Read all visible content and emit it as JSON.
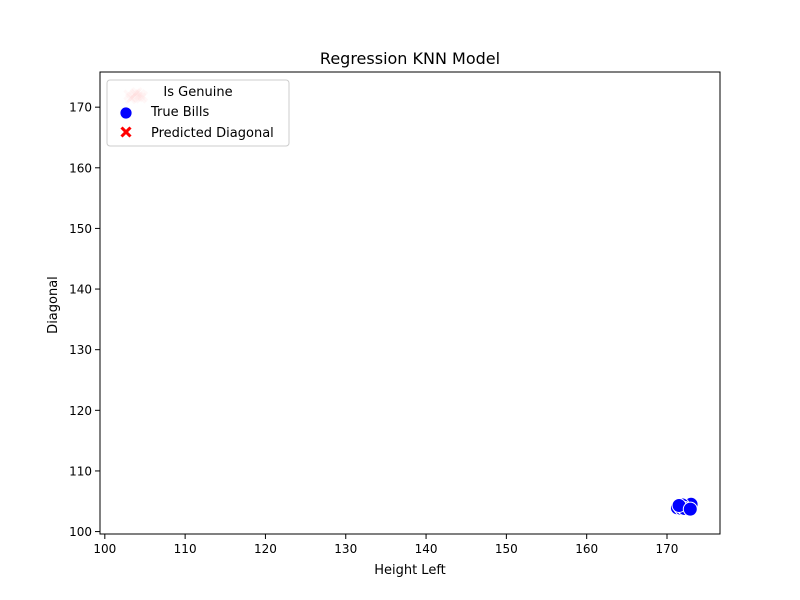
{
  "chart_data": {
    "type": "scatter",
    "title": "Regression KNN Model",
    "xlabel": "Height Left",
    "ylabel": "Diagonal",
    "xlim": [
      99.4,
      176.6
    ],
    "ylim": [
      99.6,
      175.8
    ],
    "xticks": [
      100,
      110,
      120,
      130,
      140,
      150,
      160,
      170
    ],
    "yticks": [
      100,
      110,
      120,
      130,
      140,
      150,
      160,
      170
    ],
    "grid": false,
    "legend": {
      "placement": "upper-left",
      "title": "Is Genuine",
      "entries": [
        "True Bills",
        "Predicted Diagonal"
      ]
    },
    "series": [
      {
        "name": "True Bills",
        "marker": "circle",
        "color": "#0000ff",
        "points": [
          [
            171.3,
            103.9
          ],
          [
            171.6,
            104.1
          ],
          [
            171.8,
            103.8
          ],
          [
            172.0,
            104.2
          ],
          [
            172.1,
            103.9
          ],
          [
            172.2,
            104.3
          ],
          [
            172.3,
            104.0
          ],
          [
            172.4,
            103.7
          ],
          [
            172.5,
            104.1
          ],
          [
            172.6,
            104.4
          ],
          [
            172.7,
            103.9
          ],
          [
            172.8,
            104.2
          ],
          [
            172.9,
            104.0
          ],
          [
            173.0,
            104.5
          ],
          [
            171.9,
            104.4
          ],
          [
            172.2,
            103.8
          ],
          [
            171.5,
            104.3
          ],
          [
            172.9,
            103.7
          ]
        ]
      },
      {
        "name": "Predicted Diagonal",
        "marker": "x",
        "color": "#ff0000",
        "alpha": 0.15,
        "points": [
          [
            103.0,
            172.0
          ],
          [
            103.4,
            171.6
          ],
          [
            103.8,
            172.2
          ],
          [
            104.1,
            171.7
          ],
          [
            104.4,
            172.1
          ],
          [
            104.7,
            171.8
          ],
          [
            103.2,
            171.4
          ],
          [
            104.0,
            172.4
          ],
          [
            103.6,
            171.9
          ],
          [
            104.5,
            171.5
          ]
        ]
      }
    ]
  }
}
